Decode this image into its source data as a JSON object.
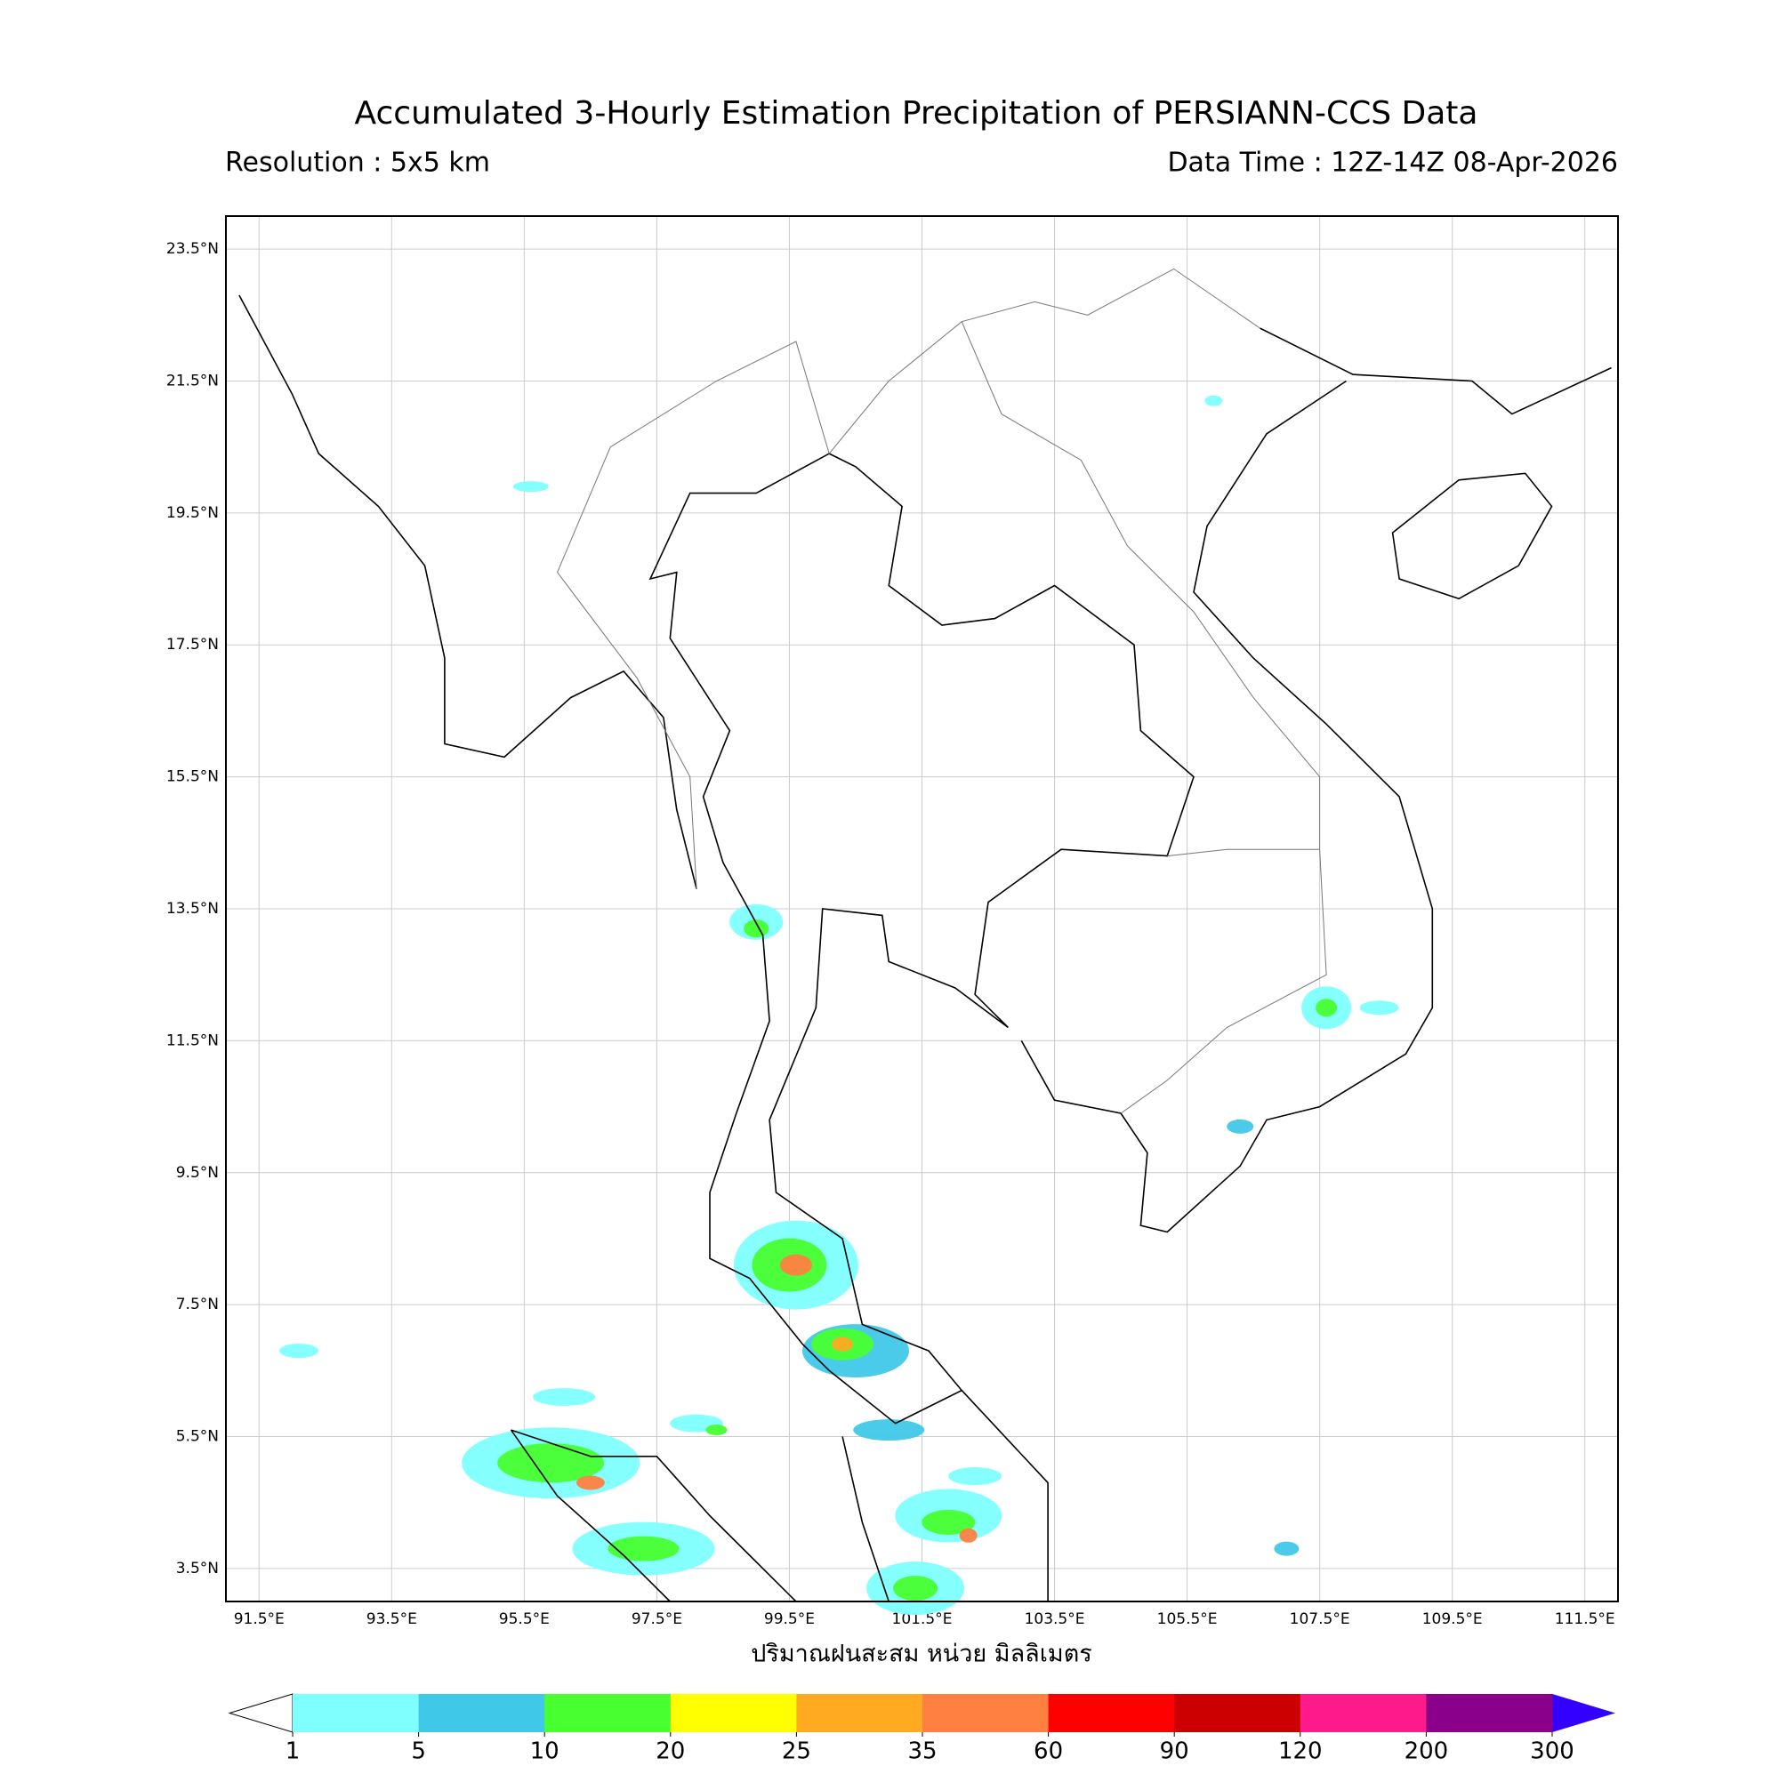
{
  "header": {
    "title": "Accumulated 3-Hourly Estimation Precipitation of PERSIANN-CCS Data",
    "resolution": "Resolution : 5x5 km",
    "data_time": "Data Time : 12Z-14Z 08-Apr-2026"
  },
  "map": {
    "xlim": [
      91,
      112
    ],
    "ylim": [
      3,
      24
    ],
    "xticks": [
      {
        "value": 91.5,
        "label": "91.5°E"
      },
      {
        "value": 93.5,
        "label": "93.5°E"
      },
      {
        "value": 95.5,
        "label": "95.5°E"
      },
      {
        "value": 97.5,
        "label": "97.5°E"
      },
      {
        "value": 99.5,
        "label": "99.5°E"
      },
      {
        "value": 101.5,
        "label": "101.5°E"
      },
      {
        "value": 103.5,
        "label": "103.5°E"
      },
      {
        "value": 105.5,
        "label": "105.5°E"
      },
      {
        "value": 107.5,
        "label": "107.5°E"
      },
      {
        "value": 109.5,
        "label": "109.5°E"
      },
      {
        "value": 111.5,
        "label": "111.5°E"
      }
    ],
    "yticks": [
      {
        "value": 23.5,
        "label": "23.5°N"
      },
      {
        "value": 21.5,
        "label": "21.5°N"
      },
      {
        "value": 19.5,
        "label": "19.5°N"
      },
      {
        "value": 17.5,
        "label": "17.5°N"
      },
      {
        "value": 15.5,
        "label": "15.5°N"
      },
      {
        "value": 13.5,
        "label": "13.5°N"
      },
      {
        "value": 11.5,
        "label": "11.5°N"
      },
      {
        "value": 9.5,
        "label": "9.5°N"
      },
      {
        "value": 7.5,
        "label": "7.5°N"
      },
      {
        "value": 5.5,
        "label": "5.5°N"
      },
      {
        "value": 3.5,
        "label": "3.5°N"
      }
    ],
    "xlabel": "ปริมาณฝนสะสม หน่วย มิลลิเมตร",
    "grid": true
  },
  "colorbar": {
    "levels": [
      1,
      5,
      10,
      20,
      25,
      35,
      60,
      90,
      120,
      200,
      300
    ],
    "colors": [
      "#80ffff",
      "#40c8e8",
      "#48ff30",
      "#ffff00",
      "#ffaa20",
      "#ff8040",
      "#ff0000",
      "#cc0000",
      "#ff1a8c",
      "#8b008b"
    ],
    "under_color": "#ffffff",
    "over_color": "#3300ff"
  }
}
